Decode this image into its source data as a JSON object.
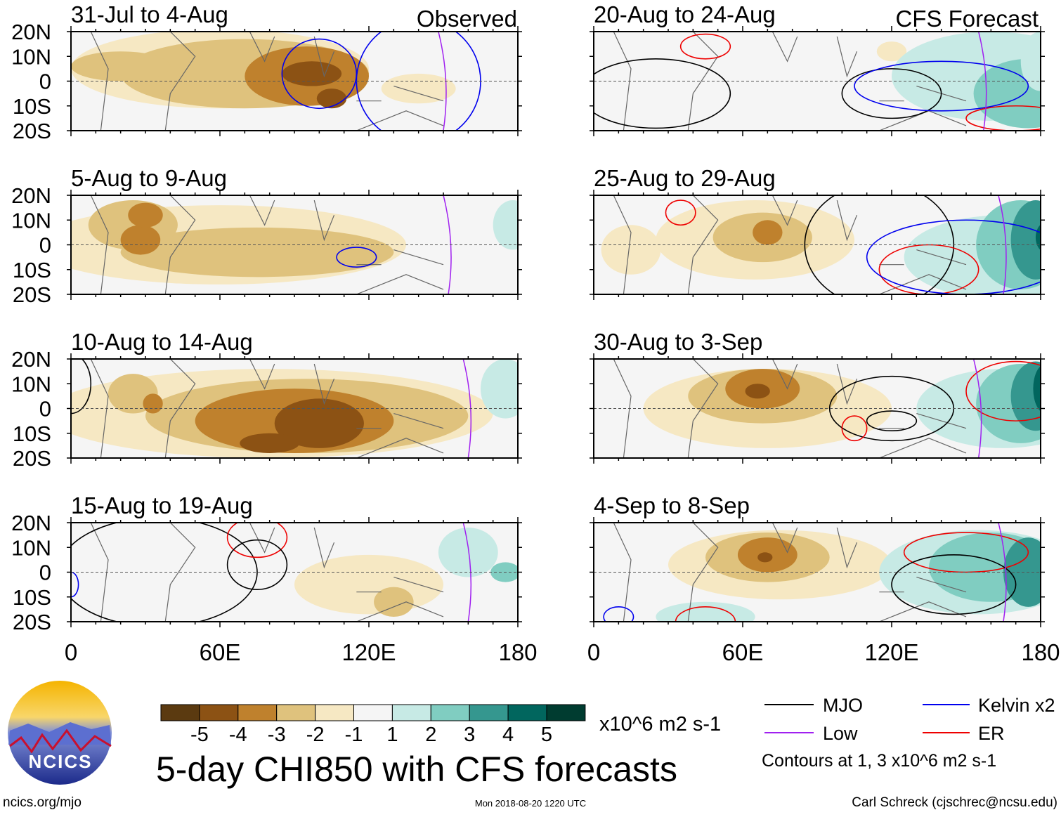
{
  "chart_data": {
    "type": "heatmap",
    "title": "5-day CHI850 with CFS forecasts",
    "units": "x10^6 m2 s-1",
    "column_labels": [
      "Observed",
      "CFS Forecast"
    ],
    "lat_ticks": [
      "20N",
      "10N",
      "0",
      "10S",
      "20S"
    ],
    "lon_ticks": [
      "0",
      "60E",
      "120E",
      "180"
    ],
    "lon_range": [
      0,
      180
    ],
    "lat_range": [
      -20,
      20
    ],
    "panels": [
      {
        "title": "31-Jul to 4-Aug",
        "column": "Observed"
      },
      {
        "title": "5-Aug to 9-Aug",
        "column": "Observed"
      },
      {
        "title": "10-Aug to 14-Aug",
        "column": "Observed"
      },
      {
        "title": "15-Aug to 19-Aug",
        "column": "Observed"
      },
      {
        "title": "20-Aug to 24-Aug",
        "column": "CFS Forecast"
      },
      {
        "title": "25-Aug to 29-Aug",
        "column": "CFS Forecast"
      },
      {
        "title": "30-Aug to 3-Sep",
        "column": "CFS Forecast"
      },
      {
        "title": "4-Sep to 8-Sep",
        "column": "CFS Forecast"
      }
    ],
    "colorbar": {
      "labels": [
        "-5",
        "-4",
        "-3",
        "-2",
        "-1",
        "1",
        "2",
        "3",
        "4",
        "5"
      ],
      "colors": [
        "#5b3a10",
        "#8c5214",
        "#bf812d",
        "#dfc27d",
        "#f6e8c3",
        "#f5f5f5",
        "#c7eae5",
        "#80cdc1",
        "#35978f",
        "#01665e",
        "#003c30"
      ]
    },
    "legend": [
      {
        "label": "MJO",
        "color": "#000000"
      },
      {
        "label": "Kelvin x2",
        "color": "#0000ee"
      },
      {
        "label": "Low",
        "color": "#a020f0"
      },
      {
        "label": "ER",
        "color": "#ee0000"
      }
    ],
    "contour_note": "Contours at 1, 3 x10^6 m2 s-1"
  },
  "logo": {
    "text": "NCICS"
  },
  "footer": {
    "site": "ncics.org/mjo",
    "timestamp": "Mon 2018-08-20 1220 UTC",
    "author": "Carl Schreck (cjschrec@ncsu.edu)"
  }
}
